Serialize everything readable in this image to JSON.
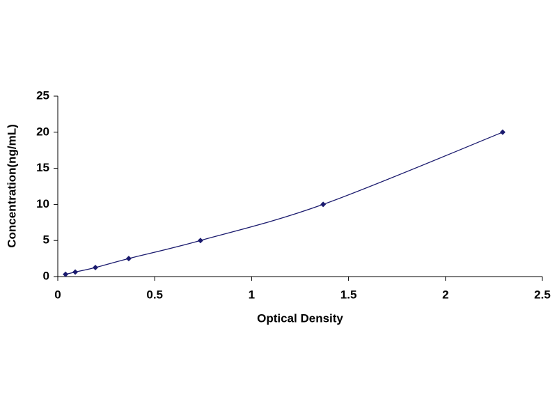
{
  "chart_data": {
    "type": "line",
    "x_label": "Optical Density",
    "y_label": "Concentration(ng/mL)",
    "x": [
      0.04,
      0.09,
      0.194,
      0.366,
      0.736,
      1.369,
      2.295
    ],
    "series": [
      {
        "color": "#1a1a6e",
        "values": [
          0.313,
          0.625,
          1.25,
          2.5,
          5,
          10,
          20
        ]
      }
    ],
    "xlim": [
      0,
      2.5
    ],
    "xticks": [
      0,
      0.5,
      1,
      1.5,
      2,
      2.5
    ],
    "ylim": [
      0,
      25
    ],
    "yticks": [
      0,
      5,
      10,
      15,
      20,
      25
    ],
    "grid": false,
    "markers": true
  }
}
